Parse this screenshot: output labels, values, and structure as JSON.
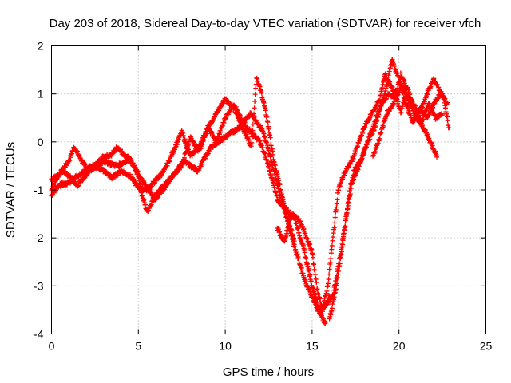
{
  "chart_data": {
    "type": "scatter",
    "title": "Day 203 of 2018, Sidereal Day-to-day VTEC variation (SDTVAR) for receiver vfch",
    "xlabel": "GPS time / hours",
    "ylabel": "SDTVAR / TECUs",
    "xlim": [
      0,
      25
    ],
    "ylim": [
      -4,
      2
    ],
    "xticks": [
      0,
      5,
      10,
      15,
      20,
      25
    ],
    "yticks": [
      -4,
      -3,
      -2,
      -1,
      0,
      1,
      2
    ],
    "grid": true,
    "marker": "plus",
    "series": [
      {
        "name": "SDTVAR",
        "color": "#ff0000",
        "tracks": [
          {
            "x": [
              0,
              0.3,
              0.6,
              1.0,
              1.3,
              1.6,
              2.0,
              2.5,
              3.0,
              3.5,
              3.8,
              4.2,
              4.5
            ],
            "y": [
              -1.0,
              -0.75,
              -0.6,
              -0.4,
              -0.1,
              -0.3,
              -0.55,
              -0.5,
              -0.3,
              -0.25,
              -0.1,
              -0.3,
              -0.35
            ]
          },
          {
            "x": [
              4.5,
              5.0,
              5.2,
              5.5,
              6.0,
              6.5,
              7.0,
              7.5,
              8.0,
              8.5,
              9.0,
              9.5,
              10.0,
              10.5,
              11.0,
              11.5,
              11.8,
              12.1,
              12.4,
              12.8,
              13.2,
              13.6,
              14.0
            ],
            "y": [
              -0.35,
              -0.7,
              -1.1,
              -1.45,
              -1.1,
              -0.9,
              -0.7,
              -0.5,
              0.1,
              -0.2,
              0.3,
              0.6,
              0.9,
              0.7,
              0.3,
              -0.1,
              1.35,
              1.0,
              0.5,
              -0.4,
              -1.0,
              -1.6,
              -2.1
            ]
          },
          {
            "x": [
              0,
              0.5,
              1.0,
              1.5,
              2.0,
              2.5,
              3.0,
              3.5,
              4.0,
              4.5,
              5.0,
              5.5,
              6.0,
              6.5,
              7.0,
              7.5,
              8.0,
              8.5,
              9.0,
              9.5,
              10.0,
              10.5,
              11.0,
              11.5,
              12.0,
              12.5,
              13.0,
              13.5,
              14.0,
              14.5,
              15.0,
              15.5,
              16.0
            ],
            "y": [
              -1.1,
              -0.9,
              -0.85,
              -0.7,
              -0.6,
              -0.5,
              -0.6,
              -0.75,
              -0.6,
              -0.7,
              -0.95,
              -1.0,
              -0.8,
              -0.6,
              -0.2,
              0.2,
              -0.3,
              -0.1,
              0.3,
              0.0,
              0.5,
              0.8,
              0.4,
              0.2,
              0.0,
              -0.5,
              -1.2,
              -1.4,
              -1.6,
              -2.2,
              -3.0,
              -3.6,
              -3.2
            ]
          },
          {
            "x": [
              0,
              0.7,
              1.5,
              2.2,
              3.0,
              3.8,
              4.5,
              5.2,
              6.0,
              6.8,
              7.6,
              8.4,
              9.2,
              10.0,
              10.8,
              11.5,
              12.2,
              12.8,
              13.4,
              14.0,
              14.6,
              15.2,
              15.8
            ],
            "y": [
              -0.8,
              -0.6,
              -0.9,
              -0.6,
              -0.4,
              -0.5,
              -0.35,
              -0.8,
              -1.2,
              -0.8,
              -0.4,
              -0.6,
              -0.1,
              0.1,
              0.3,
              0.6,
              0.2,
              -0.6,
              -1.4,
              -2.2,
              -2.9,
              -3.4,
              -3.8
            ]
          },
          {
            "x": [
              13.0,
              13.4,
              13.8,
              14.2,
              14.6,
              15.0,
              15.3,
              15.6,
              15.9,
              16.2,
              16.5,
              16.8,
              17.1,
              17.4,
              17.7,
              18.0,
              18.3,
              18.6,
              18.9,
              19.2,
              19.5,
              19.8,
              20.1,
              20.4,
              20.8,
              21.2,
              21.6,
              22.0,
              22.3,
              22.6,
              22.9
            ],
            "y": [
              -1.8,
              -2.1,
              -1.5,
              -1.6,
              -1.9,
              -2.3,
              -3.1,
              -3.5,
              -3.0,
              -2.0,
              -1.0,
              -0.7,
              -0.5,
              -0.3,
              0.0,
              0.3,
              0.5,
              0.7,
              0.9,
              1.4,
              1.2,
              1.0,
              0.6,
              1.0,
              0.8,
              0.6,
              1.0,
              1.3,
              1.1,
              0.9,
              0.2
            ]
          },
          {
            "x": [
              15.4,
              15.8,
              16.2,
              16.6,
              17.0,
              17.4,
              17.8,
              18.2,
              18.6,
              19.0,
              19.4,
              19.8,
              20.2,
              20.6,
              21.0,
              21.4,
              21.8,
              22.2
            ],
            "y": [
              -3.5,
              -3.4,
              -3.2,
              -2.4,
              -1.5,
              -0.6,
              -0.4,
              0.0,
              0.3,
              0.8,
              1.0,
              0.9,
              1.2,
              0.8,
              0.5,
              0.3,
              0.0,
              -0.3
            ]
          },
          {
            "x": [
              16.0,
              16.4,
              16.8,
              17.2,
              17.6,
              18.0,
              18.4,
              18.8,
              19.2,
              19.6,
              20.0,
              20.4,
              20.8,
              21.2,
              21.6,
              22.0,
              22.4,
              22.8
            ],
            "y": [
              -3.7,
              -3.0,
              -2.0,
              -0.9,
              -0.6,
              -0.2,
              0.2,
              0.6,
              1.0,
              1.7,
              1.3,
              0.8,
              0.4,
              0.7,
              0.5,
              0.8,
              1.0,
              0.8
            ]
          },
          {
            "x": [
              18.5,
              18.9,
              19.3,
              19.7,
              20.1,
              20.5,
              20.9,
              21.3,
              21.7,
              22.1,
              22.5
            ],
            "y": [
              -0.3,
              0.1,
              0.6,
              0.8,
              1.4,
              1.1,
              0.7,
              0.4,
              0.8,
              0.5,
              0.6
            ]
          }
        ]
      }
    ]
  }
}
